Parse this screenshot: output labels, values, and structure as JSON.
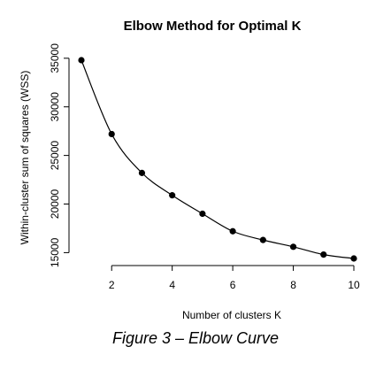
{
  "chart_data": {
    "type": "line",
    "title": "Elbow Method for Optimal K",
    "xlabel": "Number of clusters K",
    "ylabel": "Within-cluster sum of squares (WSS)",
    "x": [
      1,
      2,
      3,
      4,
      5,
      6,
      7,
      8,
      9,
      10
    ],
    "y": [
      34800,
      27200,
      23200,
      20900,
      19000,
      17200,
      16300,
      15600,
      14800,
      14400
    ],
    "xlim": [
      1,
      10
    ],
    "ylim": [
      14400,
      34800
    ],
    "xticks": [
      2,
      4,
      6,
      8,
      10
    ],
    "yticks": [
      15000,
      20000,
      25000,
      30000,
      35000
    ],
    "grid": false,
    "legend": "none",
    "marker": "filled-circle",
    "line_color": "#000000"
  },
  "caption": "Figure 3 – Elbow Curve"
}
